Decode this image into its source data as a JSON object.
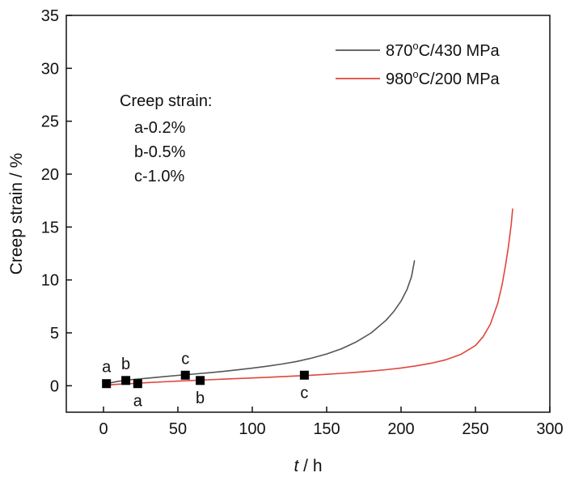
{
  "chart_data": {
    "type": "line",
    "xlabel_italic": "t",
    "xlabel_rest": " / h",
    "ylabel": "Creep strain / %",
    "xlim": [
      -25,
      300
    ],
    "ylim": [
      -2.5,
      35
    ],
    "xticks": [
      0,
      50,
      100,
      150,
      200,
      250,
      300
    ],
    "yticks": [
      0,
      5,
      10,
      15,
      20,
      25,
      30,
      35
    ],
    "grid": false,
    "legend_position": "top-right",
    "series": [
      {
        "name_main": "870",
        "name_sup": "o",
        "name_tail": "C/430 MPa",
        "color": "#555555",
        "x": [
          0,
          10,
          20,
          30,
          40,
          50,
          60,
          70,
          80,
          90,
          100,
          110,
          120,
          130,
          140,
          150,
          160,
          170,
          180,
          190,
          195,
          200,
          204,
          207,
          209
        ],
        "y": [
          0.15,
          0.42,
          0.6,
          0.72,
          0.85,
          0.98,
          1.1,
          1.22,
          1.35,
          1.5,
          1.66,
          1.85,
          2.05,
          2.3,
          2.62,
          3.0,
          3.5,
          4.15,
          5.0,
          6.2,
          7.0,
          8.0,
          9.1,
          10.3,
          11.8
        ]
      },
      {
        "name_main": "980",
        "name_sup": "o",
        "name_tail": "C/200 MPa",
        "color": "#e0463c",
        "x": [
          0,
          10,
          20,
          30,
          40,
          50,
          60,
          70,
          80,
          90,
          100,
          110,
          120,
          130,
          140,
          150,
          160,
          170,
          180,
          190,
          200,
          210,
          220,
          230,
          240,
          250,
          255,
          260,
          265,
          268,
          270,
          272,
          274,
          275
        ],
        "y": [
          0.05,
          0.15,
          0.22,
          0.3,
          0.37,
          0.44,
          0.5,
          0.56,
          0.62,
          0.68,
          0.74,
          0.8,
          0.86,
          0.93,
          1.0,
          1.08,
          1.17,
          1.27,
          1.39,
          1.52,
          1.68,
          1.88,
          2.12,
          2.45,
          2.95,
          3.8,
          4.6,
          5.8,
          7.8,
          9.6,
          11.2,
          13.0,
          15.2,
          16.7
        ]
      }
    ],
    "markers": [
      {
        "x": 2,
        "y": 0.2,
        "label": "a",
        "label_pos": "above"
      },
      {
        "x": 15,
        "y": 0.5,
        "label": "b",
        "label_pos": "above"
      },
      {
        "x": 55,
        "y": 1.0,
        "label": "c",
        "label_pos": "above"
      },
      {
        "x": 23,
        "y": 0.2,
        "label": "a",
        "label_pos": "below"
      },
      {
        "x": 65,
        "y": 0.5,
        "label": "b",
        "label_pos": "below"
      },
      {
        "x": 135,
        "y": 1.0,
        "label": "c",
        "label_pos": "below"
      }
    ],
    "annotation": {
      "title": "Creep strain:",
      "lines": [
        "a-0.2%",
        "b-0.5%",
        "c-1.0%"
      ]
    }
  }
}
